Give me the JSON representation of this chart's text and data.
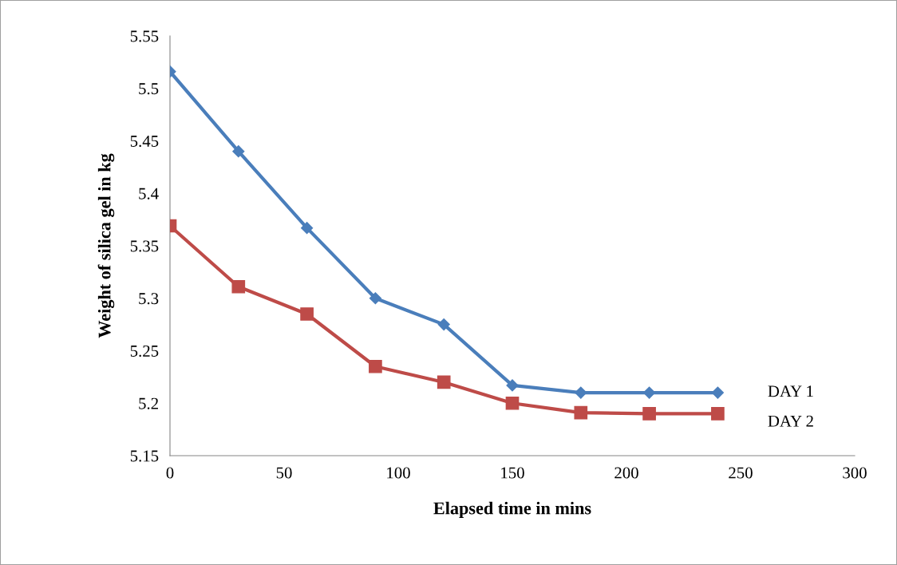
{
  "chart_data": {
    "type": "line",
    "xlabel": "Elapsed time in mins",
    "ylabel": "Weight of silica gel in kg",
    "x": [
      0,
      30,
      60,
      90,
      120,
      150,
      180,
      210,
      240
    ],
    "series": [
      {
        "name": "DAY 1",
        "color": "#4a7ebb",
        "marker": "diamond",
        "values": [
          5.516,
          5.44,
          5.367,
          5.3,
          5.275,
          5.217,
          5.21,
          5.21,
          5.21
        ]
      },
      {
        "name": "DAY 2",
        "color": "#be4b48",
        "marker": "square",
        "values": [
          5.369,
          5.311,
          5.285,
          5.235,
          5.22,
          5.2,
          5.191,
          5.19,
          5.19
        ]
      }
    ],
    "xlim": [
      0,
      300
    ],
    "xticks": [
      0,
      50,
      100,
      150,
      200,
      250,
      300
    ],
    "ylim": [
      5.15,
      5.55
    ],
    "yticks": [
      5.15,
      5.2,
      5.25,
      5.3,
      5.35,
      5.4,
      5.45,
      5.5,
      5.55
    ],
    "grid": false,
    "legend": false,
    "line_style": "solid"
  }
}
